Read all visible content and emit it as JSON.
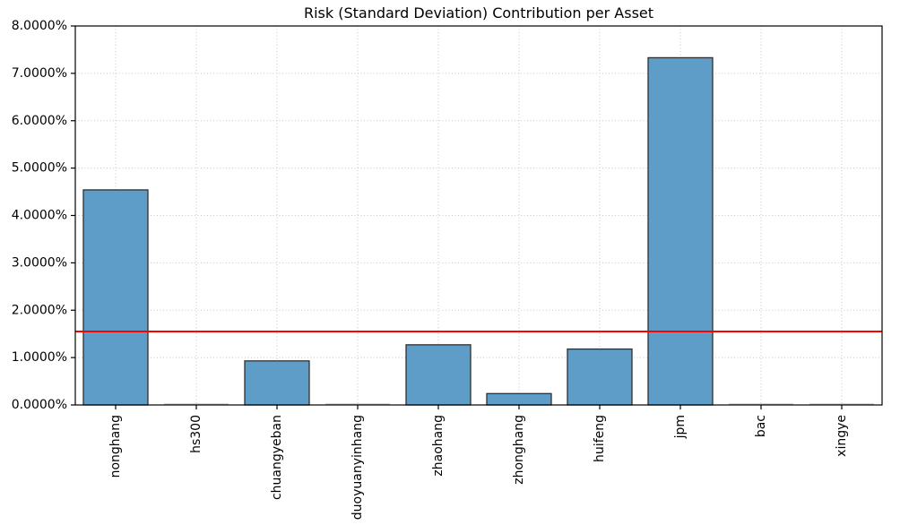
{
  "chart_data": {
    "type": "bar",
    "title": "Risk (Standard Deviation) Contribution per Asset",
    "xlabel": "",
    "ylabel": "",
    "categories": [
      "nonghang",
      "hs300",
      "chuangyeban",
      "duoyuanyinhang",
      "zhaohang",
      "zhonghang",
      "huifeng",
      "jpm",
      "bac",
      "xingye"
    ],
    "values": [
      4.54,
      0.0,
      0.93,
      0.0,
      1.27,
      0.24,
      1.18,
      7.33,
      0.0,
      0.0
    ],
    "unit": "%",
    "ylim": [
      0,
      8
    ],
    "ytick_labels": [
      "0.0000%",
      "1.0000%",
      "2.0000%",
      "3.0000%",
      "4.0000%",
      "5.0000%",
      "6.0000%",
      "7.0000%",
      "8.0000%"
    ],
    "grid": true,
    "legend": "none",
    "reference_line": {
      "value": 1.55,
      "color": "#ff0000"
    },
    "colors": {
      "bar_fill": "#5e9dc8",
      "bar_edge": "#2f2f2f",
      "zero_bar_line": "#b5b5b5",
      "grid": "#c7c7c7",
      "axis": "#000000",
      "text": "#000000",
      "background": "#ffffff"
    }
  }
}
